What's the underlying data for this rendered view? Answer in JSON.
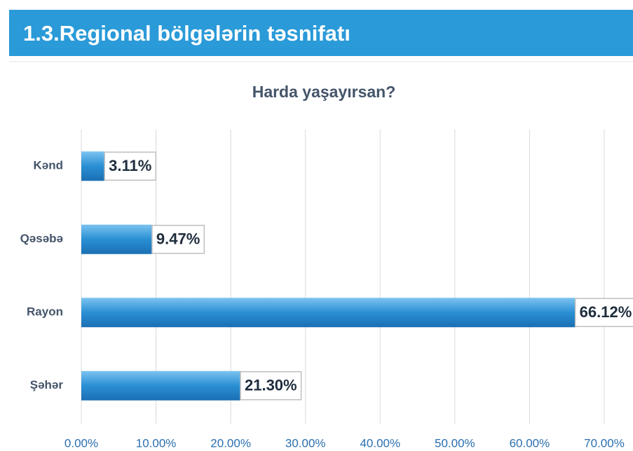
{
  "header": {
    "title": "1.3.Regional bölgələrin təsnifatı"
  },
  "chart_data": {
    "type": "bar",
    "orientation": "horizontal",
    "title": "Harda yaşayırsan?",
    "categories": [
      "Kənd",
      "Qəsəbə",
      "Rayon",
      "Şəhər"
    ],
    "values": [
      3.11,
      9.47,
      66.12,
      21.3
    ],
    "value_labels": [
      "3.11%",
      "9.47%",
      "66.12%",
      "21.30%"
    ],
    "color": "#2a8fd4",
    "xlim": [
      0,
      70
    ],
    "xticks": [
      {
        "value": 0,
        "label": "0.00%"
      },
      {
        "value": 10,
        "label": "10.00%"
      },
      {
        "value": 20,
        "label": "20.00%"
      },
      {
        "value": 30,
        "label": "30.00%"
      },
      {
        "value": 40,
        "label": "40.00%"
      },
      {
        "value": 50,
        "label": "50.00%"
      },
      {
        "value": 60,
        "label": "60.00%"
      },
      {
        "value": 70,
        "label": "70.00%"
      }
    ],
    "grid": true
  }
}
